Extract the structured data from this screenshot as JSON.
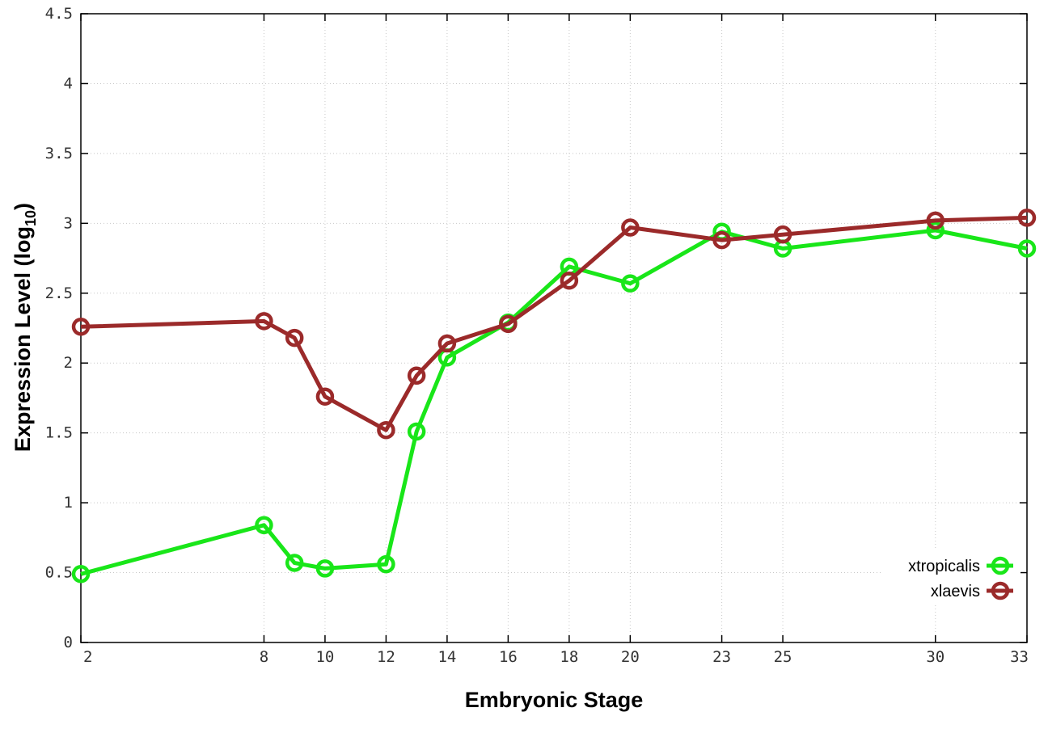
{
  "chart_data": {
    "type": "line",
    "xlabel": "Embryonic Stage",
    "ylabel_main": "Expression Level (log",
    "ylabel_sub": "10",
    "ylabel_close": ")",
    "x_ticks": [
      2,
      8,
      10,
      12,
      14,
      16,
      18,
      20,
      23,
      25,
      30,
      33
    ],
    "y_ticks": [
      "0",
      "0.5",
      "1",
      "1.5",
      "2",
      "2.5",
      "3",
      "3.5",
      "4",
      "4.5"
    ],
    "xlim": [
      2,
      33
    ],
    "ylim": [
      0,
      4.5
    ],
    "grid": true,
    "legend_position": "bottom-right",
    "x": [
      2,
      8,
      9,
      10,
      12,
      13,
      14,
      16,
      18,
      20,
      23,
      25,
      30,
      33
    ],
    "series": [
      {
        "name": "xtropicalis",
        "color": "#19e619",
        "values": [
          0.49,
          0.84,
          0.57,
          0.53,
          0.56,
          1.51,
          2.04,
          2.29,
          2.69,
          2.57,
          2.94,
          2.82,
          2.95,
          2.82
        ]
      },
      {
        "name": "xlaevis",
        "color": "#9b2a2a",
        "values": [
          2.26,
          2.3,
          2.18,
          1.76,
          1.52,
          1.91,
          2.14,
          2.28,
          2.59,
          2.97,
          2.88,
          2.92,
          3.02,
          3.04
        ]
      }
    ]
  }
}
